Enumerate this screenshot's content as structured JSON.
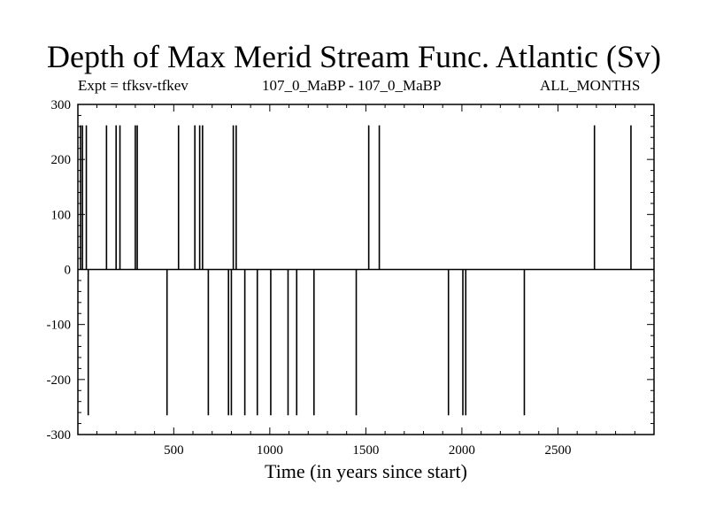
{
  "chart_data": {
    "type": "line",
    "title": "Depth of Max Merid Stream Func. Atlantic (Sv)",
    "subtitle_left": "Expt = tfksv-tfkev",
    "subtitle_center": "107_0_MaBP - 107_0_MaBP",
    "subtitle_right": "ALL_MONTHS",
    "xlabel": "Time (in years since start)",
    "ylabel": "",
    "xlim": [
      1,
      3000
    ],
    "ylim": [
      -300,
      300
    ],
    "xticks": [
      500,
      1000,
      1500,
      2000,
      2500
    ],
    "yticks": [
      -300,
      -200,
      -100,
      0,
      100,
      200,
      300
    ],
    "grid": false,
    "baseline": 0,
    "series": [
      {
        "color": "#000000",
        "spikes_x": [
          15,
          25,
          45,
          150,
          200,
          220,
          300,
          310,
          525,
          610,
          635,
          650,
          810,
          825,
          1515,
          1570,
          2690,
          2880,
          55,
          465,
          680,
          785,
          800,
          870,
          935,
          1005,
          1095,
          1140,
          1230,
          1450,
          1930,
          2005,
          2020,
          2325
        ],
        "spikes_y": [
          262,
          262,
          262,
          262,
          262,
          262,
          262,
          262,
          262,
          262,
          262,
          262,
          262,
          262,
          262,
          262,
          262,
          262,
          -265,
          -265,
          -265,
          -265,
          -265,
          -265,
          -265,
          -265,
          -265,
          -265,
          -265,
          -265,
          -265,
          -265,
          -265,
          -265
        ]
      }
    ]
  }
}
